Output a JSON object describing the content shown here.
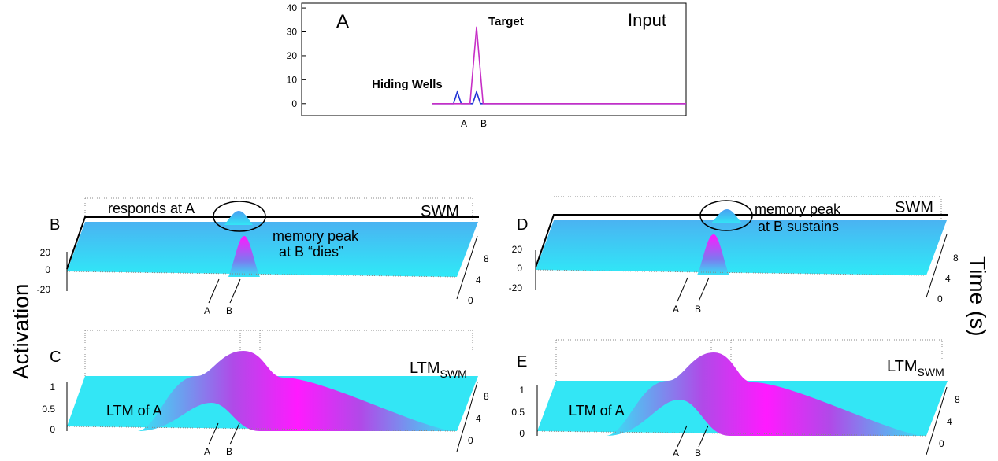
{
  "colors": {
    "target_line": "#c62ec6",
    "wells_line": "#2033d6",
    "surface_low": "#33e6f5",
    "surface_high": "#ff1aff",
    "surface_mid": "#4aa3f0",
    "axis": "#000000"
  },
  "panel_a": {
    "letter": "A",
    "corner_label": "Input",
    "annotation_target": "Target",
    "annotation_wells": "Hiding Wells",
    "y_ticks": [
      "40",
      "30",
      "20",
      "10",
      "0"
    ],
    "x_ticks": [
      "A",
      "B"
    ]
  },
  "panel_b": {
    "letter": "B",
    "corner_label": "SWM",
    "annotation_responds": "responds at A",
    "annotation_memory_1": "memory peak",
    "annotation_memory_2": "at B “dies”",
    "z_ticks": [
      "20",
      "0",
      "-20"
    ],
    "time_ticks": [
      "8",
      "4",
      "0"
    ],
    "x_ticks": [
      "A",
      "B"
    ]
  },
  "panel_c": {
    "letter": "C",
    "corner_label_main": "LTM",
    "corner_label_sub": "SWM",
    "annotation_ltm": "LTM of A",
    "z_ticks": [
      "1",
      "0.5",
      "0"
    ],
    "time_ticks": [
      "8",
      "4",
      "0"
    ],
    "x_ticks": [
      "A",
      "B"
    ]
  },
  "panel_d": {
    "letter": "D",
    "corner_label": "SWM",
    "annotation_memory_1": "memory peak",
    "annotation_memory_2": "at B sustains",
    "z_ticks": [
      "20",
      "0",
      "-20"
    ],
    "time_ticks": [
      "8",
      "4",
      "0"
    ],
    "x_ticks": [
      "A",
      "B"
    ]
  },
  "panel_e": {
    "letter": "E",
    "corner_label_main": "LTM",
    "corner_label_sub": "SWM",
    "annotation_ltm": "LTM of A",
    "z_ticks": [
      "1",
      "0.5",
      "0"
    ],
    "time_ticks": [
      "8",
      "4",
      "0"
    ],
    "x_ticks": [
      "A",
      "B"
    ]
  },
  "shared": {
    "y_axis_label": "Activation",
    "time_axis_label": "Time (s)"
  },
  "chart_data": [
    {
      "type": "line",
      "panel": "A",
      "ylim": [
        -5,
        42
      ],
      "yticks": [
        0,
        10,
        20,
        30,
        40
      ],
      "x_labels": [
        "A",
        "B"
      ],
      "series": [
        {
          "points": [
            [
              0.34,
              0
            ],
            [
              0.395,
              0
            ],
            [
              0.405,
              5
            ],
            [
              0.415,
              0
            ],
            [
              0.445,
              0
            ],
            [
              0.455,
              5
            ],
            [
              0.465,
              0
            ],
            [
              1,
              0
            ]
          ]
        },
        {
          "points": [
            [
              0.34,
              0
            ],
            [
              0.438,
              0
            ],
            [
              0.455,
              32
            ],
            [
              0.472,
              0
            ],
            [
              1,
              0
            ]
          ]
        }
      ]
    },
    {
      "type": "surface",
      "panel": "B",
      "zlim": [
        -20,
        30
      ],
      "zticks": [
        20,
        0,
        -20
      ],
      "time_ticks": [
        0,
        4,
        8
      ],
      "x_labels": [
        "A",
        "B"
      ],
      "peaks": [
        {
          "x_label": "B",
          "time_range": [
            0,
            4
          ],
          "height": 30
        },
        {
          "x_label": "A",
          "time_range": [
            8,
            10
          ],
          "height": 8
        }
      ]
    },
    {
      "type": "surface",
      "panel": "C",
      "zlim": [
        0,
        1.2
      ],
      "zticks": [
        0,
        0.5,
        1
      ],
      "time_ticks": [
        0,
        4,
        8
      ],
      "x_labels": [
        "A",
        "B"
      ],
      "peaks": [
        {
          "x_label": "A",
          "time": 0,
          "height": 0.6
        },
        {
          "x_label": "B",
          "time": 10,
          "height": 1.1
        }
      ]
    },
    {
      "type": "surface",
      "panel": "D",
      "zlim": [
        -20,
        30
      ],
      "zticks": [
        20,
        0,
        -20
      ],
      "time_ticks": [
        0,
        4,
        8
      ],
      "x_labels": [
        "A",
        "B"
      ],
      "peaks": [
        {
          "x_label": "B",
          "time_range": [
            0,
            10
          ],
          "height": 30
        }
      ]
    },
    {
      "type": "surface",
      "panel": "E",
      "zlim": [
        0,
        1.2
      ],
      "zticks": [
        0,
        0.5,
        1
      ],
      "time_ticks": [
        0,
        4,
        8
      ],
      "x_labels": [
        "A",
        "B"
      ],
      "peaks": [
        {
          "x_label": "A",
          "time": 0,
          "height": 0.6
        },
        {
          "x_label": "B",
          "time": 10,
          "height": 1.1
        }
      ]
    }
  ]
}
